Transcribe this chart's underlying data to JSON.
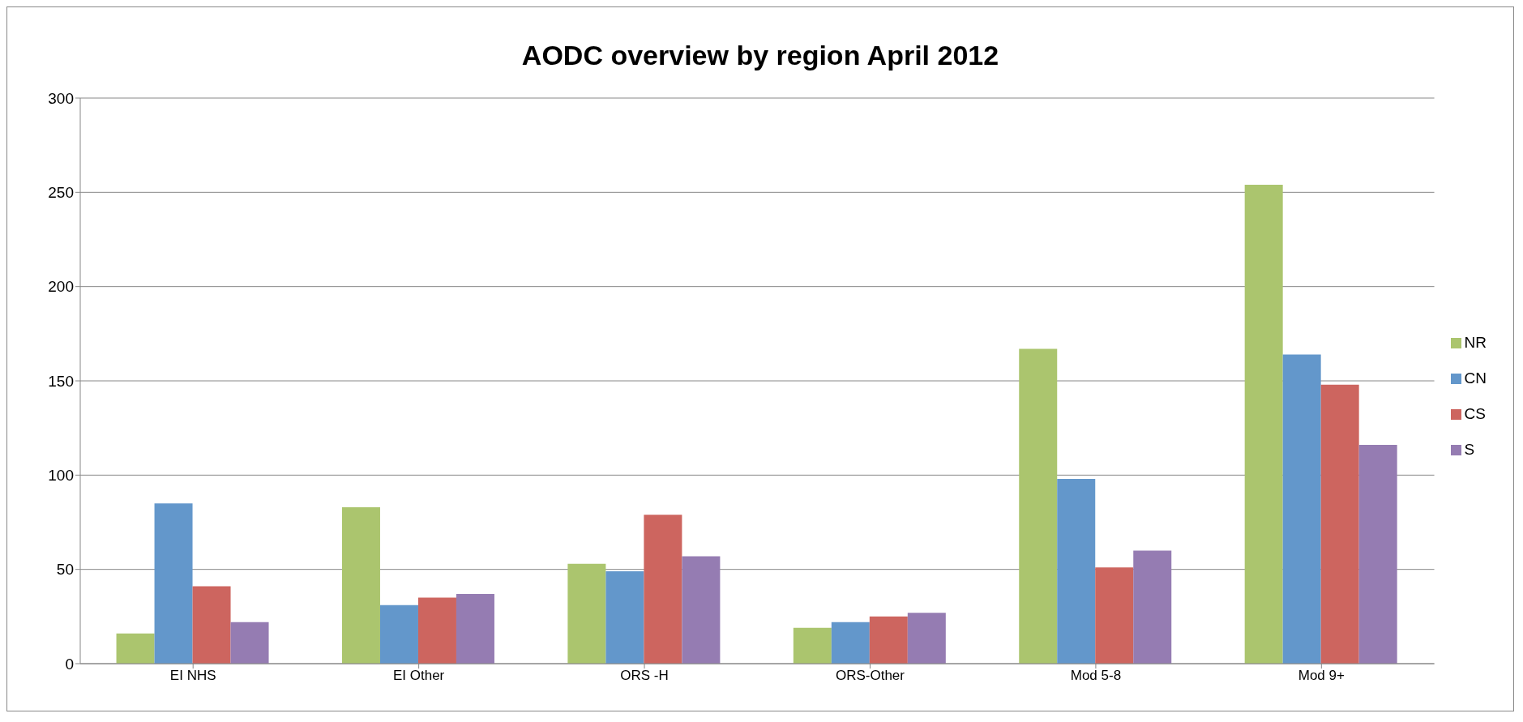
{
  "chart_data": {
    "type": "bar",
    "title": "AODC overview by region April 2012",
    "categories": [
      "EI NHS",
      "EI Other",
      "ORS -H",
      "ORS-Other",
      "Mod 5-8",
      "Mod 9+"
    ],
    "series": [
      {
        "name": "NR",
        "color": "#abc56e",
        "values": [
          16,
          83,
          53,
          19,
          167,
          254
        ]
      },
      {
        "name": "CN",
        "color": "#6397cb",
        "values": [
          85,
          31,
          49,
          22,
          98,
          164
        ]
      },
      {
        "name": "CS",
        "color": "#cd655f",
        "values": [
          41,
          35,
          79,
          25,
          51,
          148
        ]
      },
      {
        "name": "S",
        "color": "#957cb2",
        "values": [
          22,
          37,
          57,
          27,
          60,
          116
        ]
      }
    ],
    "ylim": [
      0,
      300
    ],
    "yticks": [
      0,
      50,
      100,
      150,
      200,
      250,
      300
    ],
    "grid": "y",
    "legend": "right"
  }
}
